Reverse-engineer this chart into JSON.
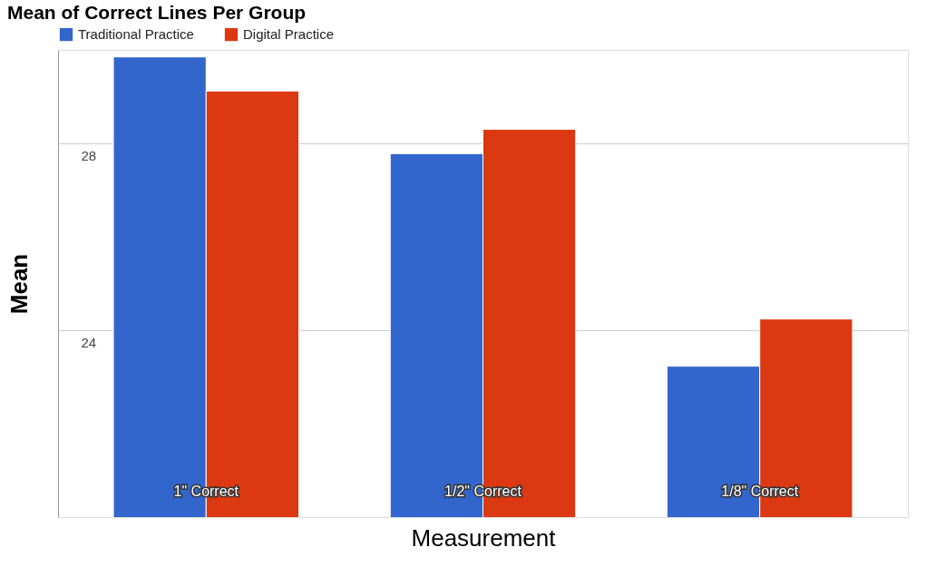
{
  "chart_data": {
    "type": "bar",
    "title": "Mean of Correct Lines Per Group",
    "xlabel": "Measurement",
    "ylabel": "Mean",
    "categories": [
      "1\" Correct",
      "1/2\" Correct",
      "1/8\" Correct"
    ],
    "series": [
      {
        "name": "Traditional Practice",
        "color": "#3366cc",
        "values": [
          29.85,
          27.78,
          23.23
        ]
      },
      {
        "name": "Digital Practice",
        "color": "#dc3912",
        "values": [
          29.12,
          28.3,
          24.24
        ]
      }
    ],
    "ylim": [
      20,
      30
    ],
    "yticks": [
      24,
      28
    ],
    "grid": "y",
    "legend": "top left"
  }
}
